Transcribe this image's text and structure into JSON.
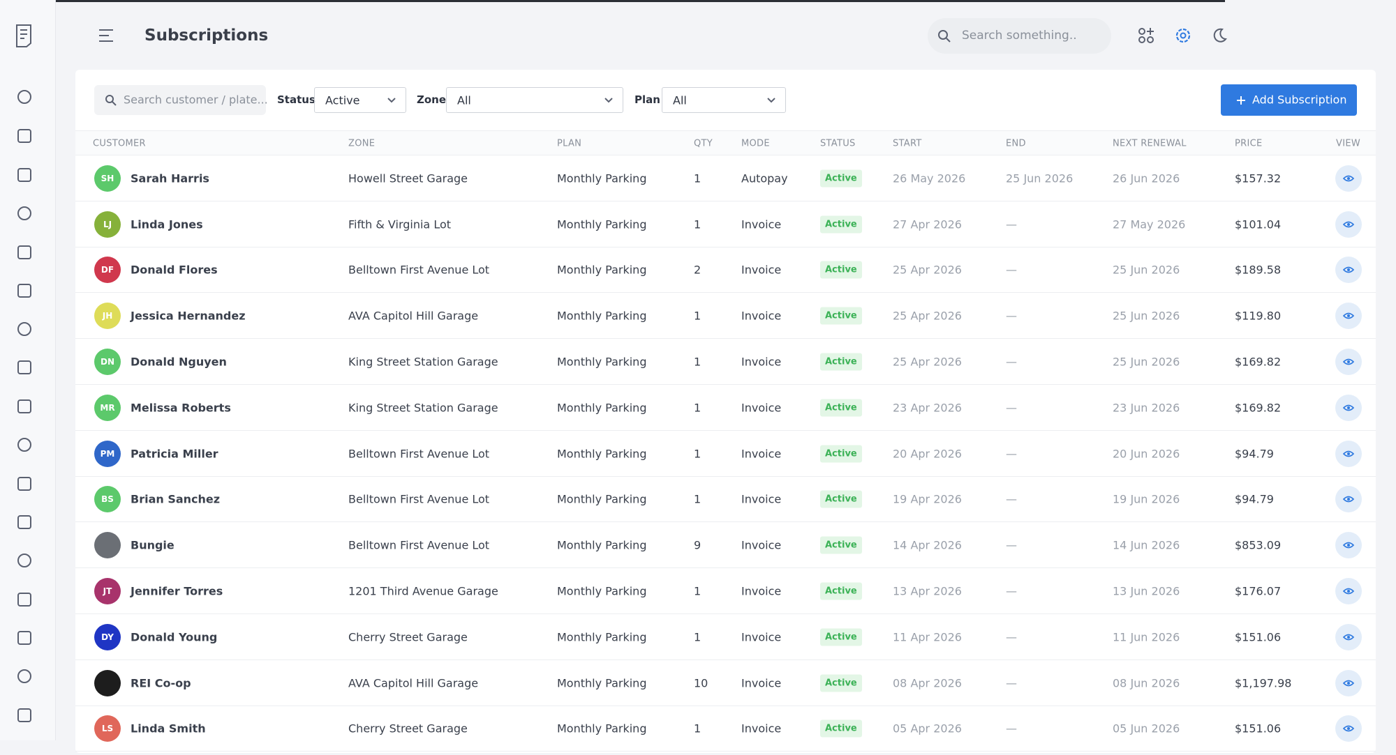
{
  "header": {
    "title": "Subscriptions",
    "search_placeholder": "Search something.."
  },
  "filters": {
    "search_placeholder": "Search customer / plate...",
    "status_label": "Status",
    "status_value": "Active",
    "zone_label": "Zone",
    "zone_value": "All",
    "plan_label": "Plan",
    "plan_value": "All",
    "add_button": "Add Subscription"
  },
  "table": {
    "columns": [
      "CUSTOMER",
      "ZONE",
      "PLAN",
      "QTY",
      "MODE",
      "STATUS",
      "START",
      "END",
      "NEXT RENEWAL",
      "PRICE",
      "VIEW"
    ],
    "rows": [
      {
        "initials": "SH",
        "color": "#5cc96b",
        "name": "Sarah Harris",
        "zone": "Howell Street Garage",
        "plan": "Monthly Parking",
        "qty": 1,
        "mode": "Autopay",
        "status": "Active",
        "start": "26 May 2026",
        "end": "25 Jun 2026",
        "renewal": "26 Jun 2026",
        "price": "$157.32"
      },
      {
        "initials": "LJ",
        "color": "#86b13a",
        "name": "Linda Jones",
        "zone": "Fifth & Virginia Lot",
        "plan": "Monthly Parking",
        "qty": 1,
        "mode": "Invoice",
        "status": "Active",
        "start": "27 Apr 2026",
        "end": "—",
        "renewal": "27 May 2026",
        "price": "$101.04"
      },
      {
        "initials": "DF",
        "color": "#d0384d",
        "name": "Donald Flores",
        "zone": "Belltown First Avenue Lot",
        "plan": "Monthly Parking",
        "qty": 2,
        "mode": "Invoice",
        "status": "Active",
        "start": "25 Apr 2026",
        "end": "—",
        "renewal": "25 Jun 2026",
        "price": "$189.58"
      },
      {
        "initials": "JH",
        "color": "#dedc58",
        "name": "Jessica Hernandez",
        "zone": "AVA Capitol Hill Garage",
        "plan": "Monthly Parking",
        "qty": 1,
        "mode": "Invoice",
        "status": "Active",
        "start": "25 Apr 2026",
        "end": "—",
        "renewal": "25 Jun 2026",
        "price": "$119.80"
      },
      {
        "initials": "DN",
        "color": "#5cc96b",
        "name": "Donald Nguyen",
        "zone": "King Street Station Garage",
        "plan": "Monthly Parking",
        "qty": 1,
        "mode": "Invoice",
        "status": "Active",
        "start": "25 Apr 2026",
        "end": "—",
        "renewal": "25 Jun 2026",
        "price": "$169.82"
      },
      {
        "initials": "MR",
        "color": "#5cc96b",
        "name": "Melissa Roberts",
        "zone": "King Street Station Garage",
        "plan": "Monthly Parking",
        "qty": 1,
        "mode": "Invoice",
        "status": "Active",
        "start": "23 Apr 2026",
        "end": "—",
        "renewal": "23 Jun 2026",
        "price": "$169.82"
      },
      {
        "initials": "PM",
        "color": "#2f67c9",
        "name": "Patricia Miller",
        "zone": "Belltown First Avenue Lot",
        "plan": "Monthly Parking",
        "qty": 1,
        "mode": "Invoice",
        "status": "Active",
        "start": "20 Apr 2026",
        "end": "—",
        "renewal": "20 Jun 2026",
        "price": "$94.79"
      },
      {
        "initials": "BS",
        "color": "#5cc96b",
        "name": "Brian Sanchez",
        "zone": "Belltown First Avenue Lot",
        "plan": "Monthly Parking",
        "qty": 1,
        "mode": "Invoice",
        "status": "Active",
        "start": "19 Apr 2026",
        "end": "—",
        "renewal": "19 Jun 2026",
        "price": "$94.79"
      },
      {
        "color": "#6b6f75",
        "name": "Bungie",
        "zone": "Belltown First Avenue Lot",
        "plan": "Monthly Parking",
        "qty": 9,
        "mode": "Invoice",
        "status": "Active",
        "start": "14 Apr 2026",
        "end": "—",
        "renewal": "14 Jun 2026",
        "price": "$853.09"
      },
      {
        "initials": "JT",
        "color": "#a8336b",
        "name": "Jennifer Torres",
        "zone": "1201 Third Avenue Garage",
        "plan": "Monthly Parking",
        "qty": 1,
        "mode": "Invoice",
        "status": "Active",
        "start": "13 Apr 2026",
        "end": "—",
        "renewal": "13 Jun 2026",
        "price": "$176.07"
      },
      {
        "initials": "DY",
        "color": "#1f35c4",
        "name": "Donald Young",
        "zone": "Cherry Street Garage",
        "plan": "Monthly Parking",
        "qty": 1,
        "mode": "Invoice",
        "status": "Active",
        "start": "11 Apr 2026",
        "end": "—",
        "renewal": "11 Jun 2026",
        "price": "$151.06"
      },
      {
        "color": "#1d1d1d",
        "name": "REI Co-op",
        "zone": "AVA Capitol Hill Garage",
        "plan": "Monthly Parking",
        "qty": 10,
        "mode": "Invoice",
        "status": "Active",
        "start": "08 Apr 2026",
        "end": "—",
        "renewal": "08 Jun 2026",
        "price": "$1,197.98"
      },
      {
        "initials": "LS",
        "color": "#e0675a",
        "name": "Linda Smith",
        "zone": "Cherry Street Garage",
        "plan": "Monthly Parking",
        "qty": 1,
        "mode": "Invoice",
        "status": "Active",
        "start": "05 Apr 2026",
        "end": "—",
        "renewal": "05 Jun 2026",
        "price": "$151.06"
      }
    ]
  }
}
